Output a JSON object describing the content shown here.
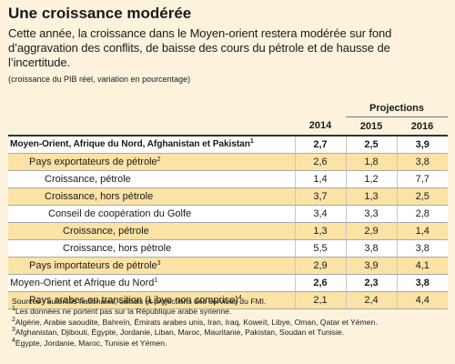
{
  "box": {
    "title": "Une croissance modérée",
    "intro": "Cette année, la croissance dans le Moyen-orient restera modérée sur fond d’aggravation des conflits, de baisse des cours du pétrole et de hausse de l’incertitude.",
    "unit_note": "(croissance du PIB réel, variation en pourcentage)"
  },
  "table": {
    "projections_label": "Projections",
    "years": [
      "2014",
      "2015",
      "2016"
    ],
    "rows": [
      {
        "label": "Moyen-Orient, Afrique du Nord, Afghanistan et Pakistan",
        "sup": "1",
        "values": [
          "2,7",
          "2,5",
          "3,9"
        ]
      },
      {
        "label": "Pays exportateurs de pétrole",
        "sup": "2",
        "values": [
          "2,6",
          "1,8",
          "3,8"
        ]
      },
      {
        "label": "Croissance, pétrole",
        "sup": "",
        "values": [
          "1,4",
          "1,2",
          "7,7"
        ]
      },
      {
        "label": "Croissance, hors pétrole",
        "sup": "",
        "values": [
          "3,7",
          "1,3",
          "2,5"
        ]
      },
      {
        "label": "Conseil de coopération du Golfe",
        "sup": "",
        "values": [
          "3,4",
          "3,3",
          "2,8"
        ]
      },
      {
        "label": "Croissance, pétrole",
        "sup": "",
        "values": [
          "1,3",
          "2,9",
          "1,4"
        ]
      },
      {
        "label": "Croissance, hors pétrole",
        "sup": "",
        "values": [
          "5,5",
          "3,8",
          "3,8"
        ]
      },
      {
        "label": "Pays importateurs de pétrole",
        "sup": "3",
        "values": [
          "2,9",
          "3,9",
          "4,1"
        ]
      },
      {
        "label": "Moyen-Orient et Afrique du Nord",
        "sup": "1",
        "values": [
          "2,6",
          "2,3",
          "3,8"
        ]
      },
      {
        "label": "Pays arabes en transition (Libye non comprise)",
        "sup": "4",
        "values": [
          "2,1",
          "2,4",
          "4,4"
        ]
      }
    ]
  },
  "footnotes": {
    "sources": "Sources : autorités nationales; calculs et projections des services du FMI.",
    "n1_mark": "1",
    "n1": "Les données ne portent pas sur la République arabe syrienne.",
    "n2_mark": "2",
    "n2": "Algérie, Arabie saoudite, Bahreïn, Émirats arabes unis, Iran, Iraq, Koweït, Libye, Oman, Qatar et Yémen.",
    "n3_mark": "3",
    "n3": "Afghanistan, Djibouti, Égypte, Jordanie, Liban, Maroc, Mauritanie, Pakistan, Soudan et Tunisie.",
    "n4_mark": "4",
    "n4": "Égypte, Jordanie, Maroc, Tunisie et Yémen."
  }
}
